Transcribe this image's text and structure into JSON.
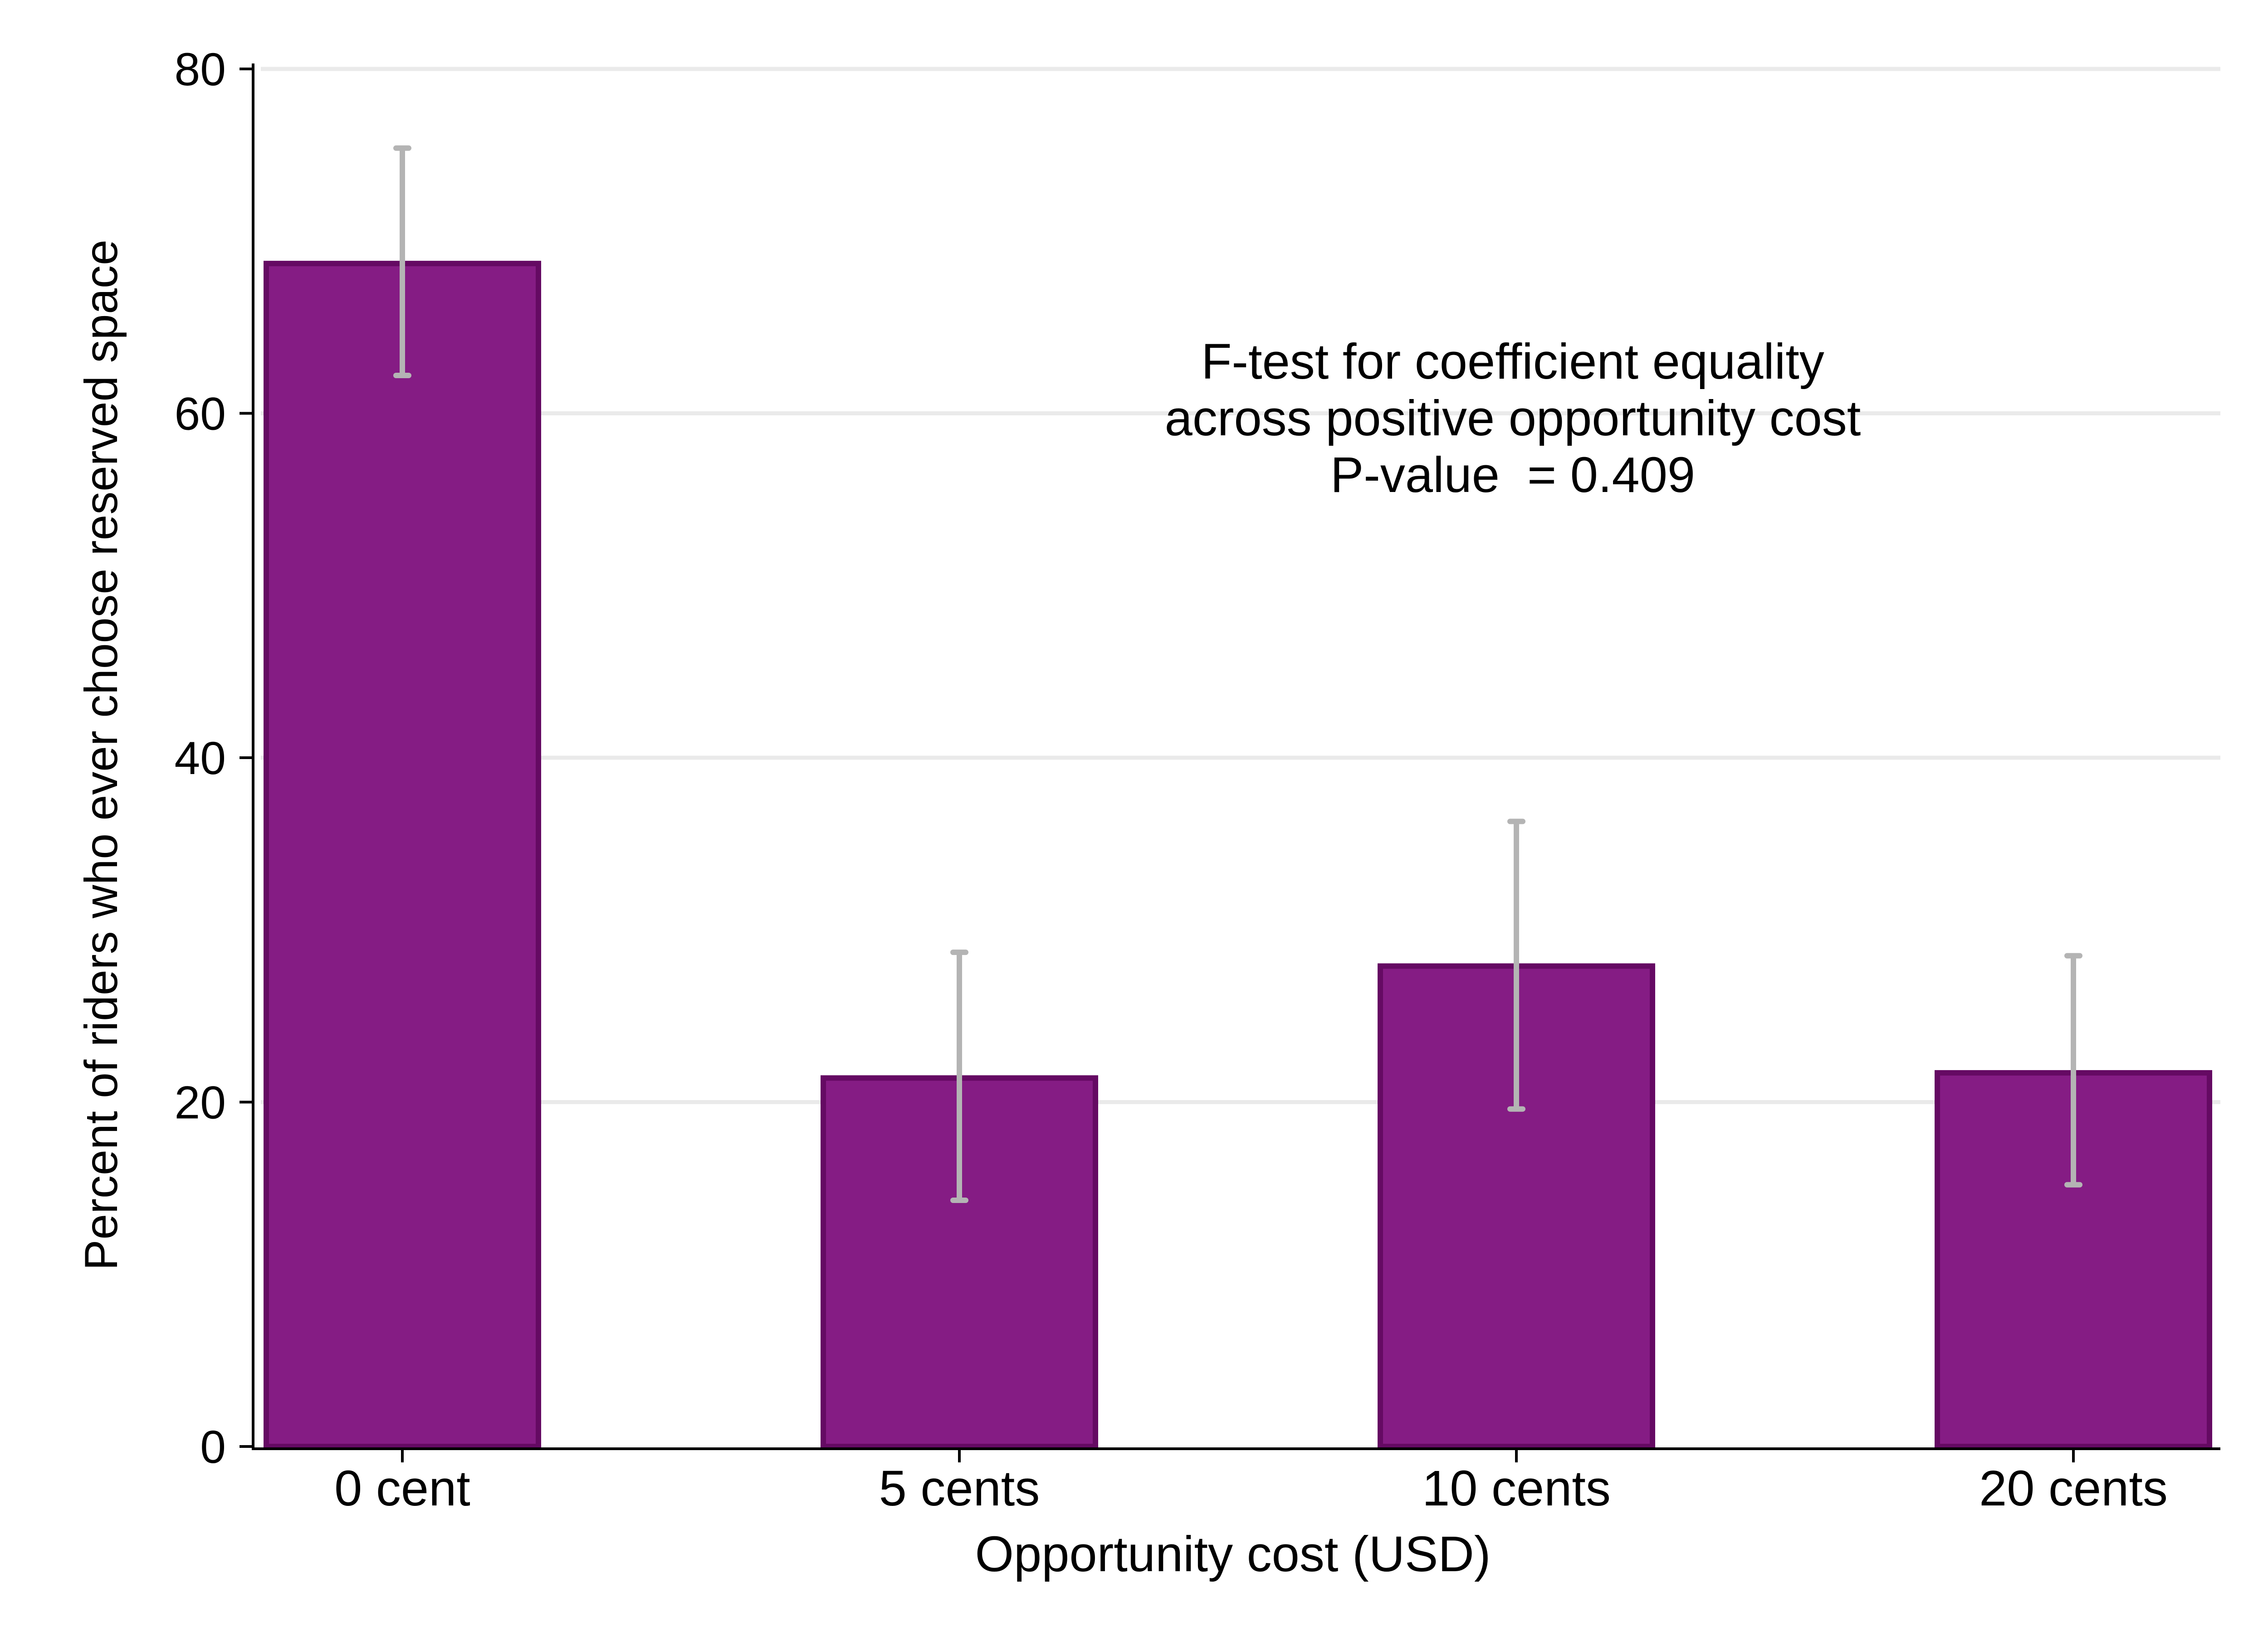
{
  "chart_data": {
    "type": "bar",
    "title": "",
    "xlabel": "Opportunity cost (USD)",
    "ylabel": "Percent of riders who ever choose reserved space",
    "categories": [
      "0 cent",
      "5 cents",
      "10 cents",
      "20 cents"
    ],
    "values": [
      68.7,
      21.4,
      27.9,
      21.7
    ],
    "error_bars": [
      {
        "low": 62.2,
        "high": 75.4
      },
      {
        "low": 14.3,
        "high": 28.7
      },
      {
        "low": 19.6,
        "high": 36.3
      },
      {
        "low": 15.2,
        "high": 28.5
      }
    ],
    "ylim": [
      0,
      80
    ],
    "yticks": [
      "0",
      "20",
      "40",
      "60",
      "80"
    ],
    "grid": true,
    "bar_color": "#851c84",
    "bar_edge_color": "#650a63",
    "error_color": "#b4b4b4",
    "annotation": [
      "F-test for coefficient equality",
      "across positive opportunity cost",
      "P-value  = 0.409"
    ]
  }
}
